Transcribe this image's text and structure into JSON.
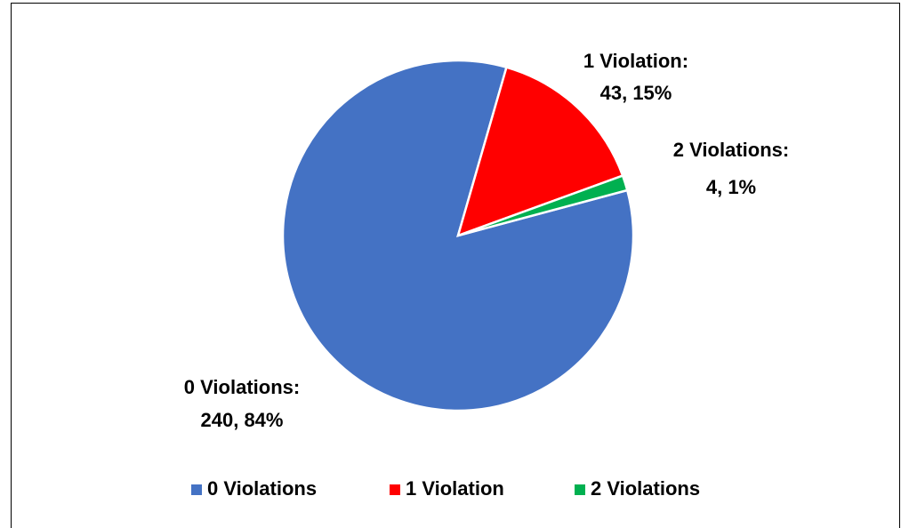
{
  "chart_data": {
    "type": "pie",
    "categories": [
      "0 Violations",
      "1 Violation",
      "2 Violations"
    ],
    "values": [
      240,
      43,
      4
    ],
    "value_labels": [
      "240, 84%",
      "43, 15%",
      "4, 1%"
    ],
    "label_titles": [
      "0 Violations:",
      "1 Violation:",
      "2 Violations:"
    ],
    "colors": [
      "#4472c4",
      "#ff0000",
      "#00b050"
    ],
    "start_angle": 75,
    "legend": "bottom"
  }
}
